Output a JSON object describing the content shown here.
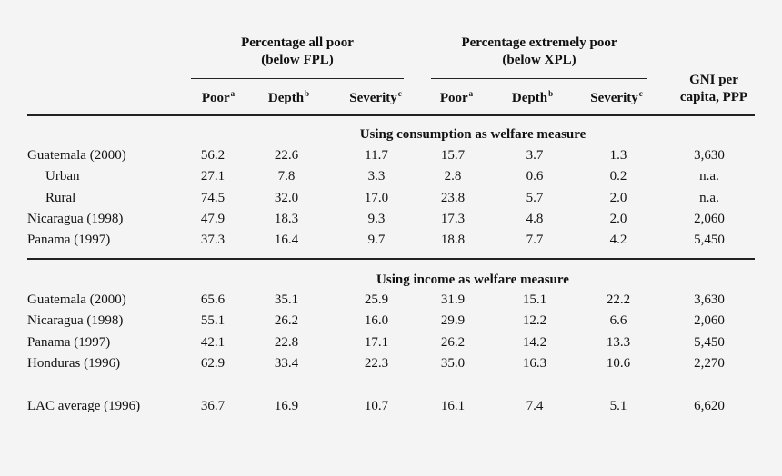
{
  "header": {
    "group1_line1": "Percentage all poor",
    "group1_line2": "(below FPL)",
    "group2_line1": "Percentage extremely poor",
    "group2_line2": "(below XPL)",
    "gni_line1": "GNI per",
    "gni_line2": "capita, PPP",
    "cols": [
      {
        "label": "Poor",
        "sup": "a"
      },
      {
        "label": "Depth",
        "sup": "b"
      },
      {
        "label": "Severity",
        "sup": "c"
      },
      {
        "label": "Poor",
        "sup": "a"
      },
      {
        "label": "Depth",
        "sup": "b"
      },
      {
        "label": "Severity",
        "sup": "c"
      }
    ]
  },
  "section1": {
    "title": "Using consumption as welfare measure",
    "rows": [
      {
        "label": "Guatemala (2000)",
        "values": [
          "56.2",
          "22.6",
          "11.7",
          "15.7",
          "3.7",
          "1.3",
          "3,630"
        ]
      },
      {
        "label": "Urban",
        "values": [
          "27.1",
          "7.8",
          "3.3",
          "2.8",
          "0.6",
          "0.2",
          "n.a."
        ]
      },
      {
        "label": "Rural",
        "values": [
          "74.5",
          "32.0",
          "17.0",
          "23.8",
          "5.7",
          "2.0",
          "n.a."
        ]
      },
      {
        "label": "Nicaragua (1998)",
        "values": [
          "47.9",
          "18.3",
          "9.3",
          "17.3",
          "4.8",
          "2.0",
          "2,060"
        ]
      },
      {
        "label": "Panama (1997)",
        "values": [
          "37.3",
          "16.4",
          "9.7",
          "18.8",
          "7.7",
          "4.2",
          "5,450"
        ]
      }
    ]
  },
  "section2": {
    "title": "Using income as welfare measure",
    "rows": [
      {
        "label": "Guatemala (2000)",
        "values": [
          "65.6",
          "35.1",
          "25.9",
          "31.9",
          "15.1",
          "22.2",
          "3,630"
        ]
      },
      {
        "label": "Nicaragua (1998)",
        "values": [
          "55.1",
          "26.2",
          "16.0",
          "29.9",
          "12.2",
          "6.6",
          "2,060"
        ]
      },
      {
        "label": "Panama (1997)",
        "values": [
          "42.1",
          "22.8",
          "17.1",
          "26.2",
          "14.2",
          "13.3",
          "5,450"
        ]
      },
      {
        "label": "Honduras (1996)",
        "values": [
          "62.9",
          "33.4",
          "22.3",
          "35.0",
          "16.3",
          "10.6",
          "2,270"
        ]
      }
    ]
  },
  "footer_row": {
    "label": "LAC average (1996)",
    "values": [
      "36.7",
      "16.9",
      "10.7",
      "16.1",
      "7.4",
      "5.1",
      "6,620"
    ]
  }
}
